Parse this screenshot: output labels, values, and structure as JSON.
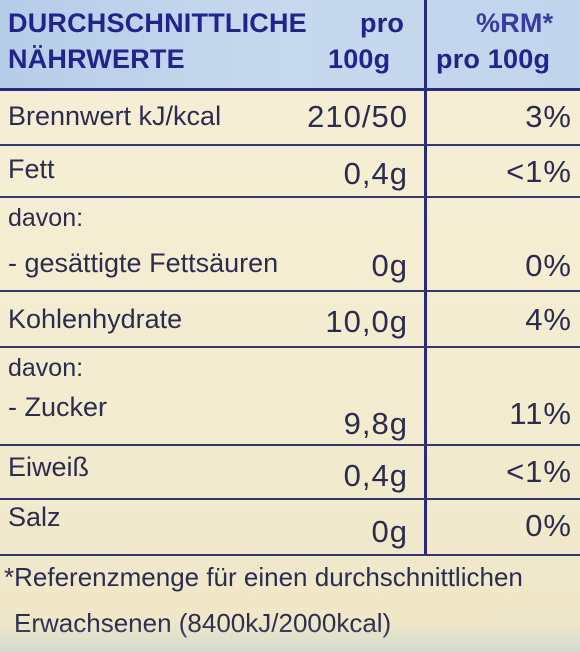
{
  "header": {
    "title_line1": "DURCHSCHNITTLICHE",
    "title_line2": "NÄHRWERTE",
    "col_per_line1": "pro",
    "col_per_line2": "100g",
    "col_rm_line1": "%RM*",
    "col_rm_line2": "pro 100g"
  },
  "rows": [
    {
      "name": "Brennwert kJ/kcal",
      "amount": "210/50",
      "rm": "3%"
    },
    {
      "name": "Fett",
      "amount": "0,4g",
      "rm": "<1%"
    },
    {
      "prefix": "davon:",
      "name": "- gesättigte Fettsäuren",
      "amount": "0g",
      "rm": "0%"
    },
    {
      "name": "Kohlenhydrate",
      "amount": "10,0g",
      "rm": "4%"
    },
    {
      "prefix": "davon:",
      "name": "- Zucker",
      "amount": "9,8g",
      "rm": "11%"
    },
    {
      "name": "Eiweiß",
      "amount": "0,4g",
      "rm": "<1%"
    },
    {
      "name": "Salz",
      "amount": "0g",
      "rm": "0%"
    }
  ],
  "footnote": {
    "line1": "*Referenzmenge für einen durchschnittlichen",
    "line2": "Erwachsenen (8400kJ/2000kcal)"
  }
}
